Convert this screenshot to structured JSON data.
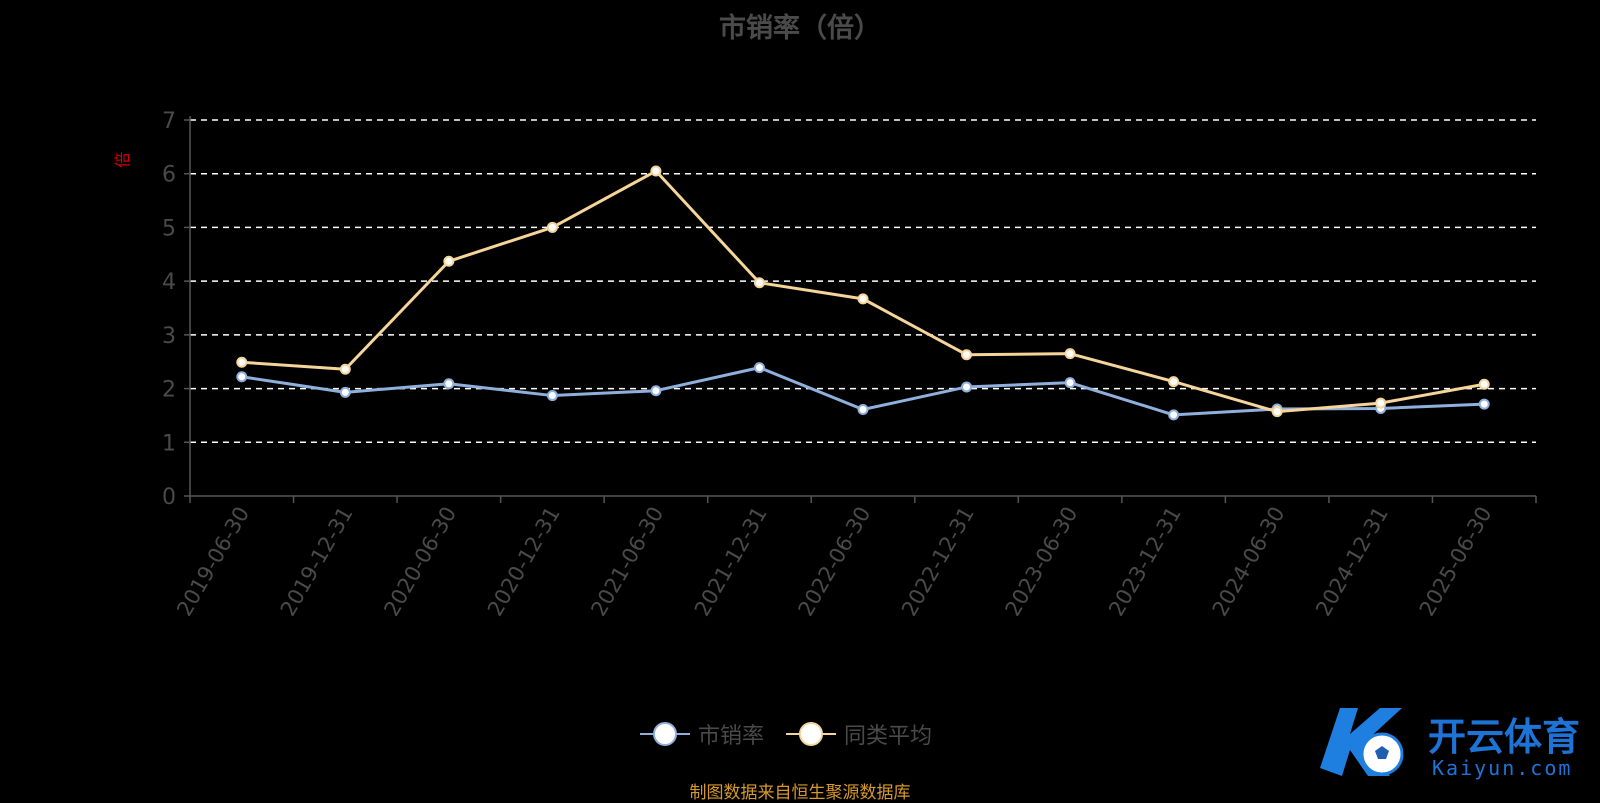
{
  "chart_data": {
    "type": "line",
    "title": "市销率（倍）",
    "ylabel": "倍",
    "ylim": [
      0,
      7
    ],
    "yticks": [
      0,
      1,
      2,
      3,
      4,
      5,
      6,
      7
    ],
    "grid": true,
    "legend_position": "bottom-center",
    "categories": [
      "2019-06-30",
      "2019-12-31",
      "2020-06-30",
      "2020-12-31",
      "2021-06-30",
      "2021-12-31",
      "2022-06-30",
      "2022-12-31",
      "2023-06-30",
      "2023-12-31",
      "2024-06-30",
      "2024-12-31",
      "2025-06-30"
    ],
    "series": [
      {
        "name": "市销率",
        "color": "#8fb0dc",
        "values": [
          2.22,
          1.93,
          2.09,
          1.87,
          1.96,
          2.39,
          1.61,
          2.03,
          2.11,
          1.51,
          1.62,
          1.63,
          1.71
        ]
      },
      {
        "name": "同类平均",
        "color": "#f5d59a",
        "values": [
          2.49,
          2.36,
          4.37,
          5.0,
          6.05,
          3.97,
          3.67,
          2.63,
          2.65,
          2.13,
          1.57,
          1.73,
          2.08
        ]
      }
    ]
  },
  "footer": {
    "source_note": "制图数据来自恒生聚源数据库"
  },
  "watermark": {
    "brand": "开云体育",
    "domain": "Kaiyun.com"
  }
}
